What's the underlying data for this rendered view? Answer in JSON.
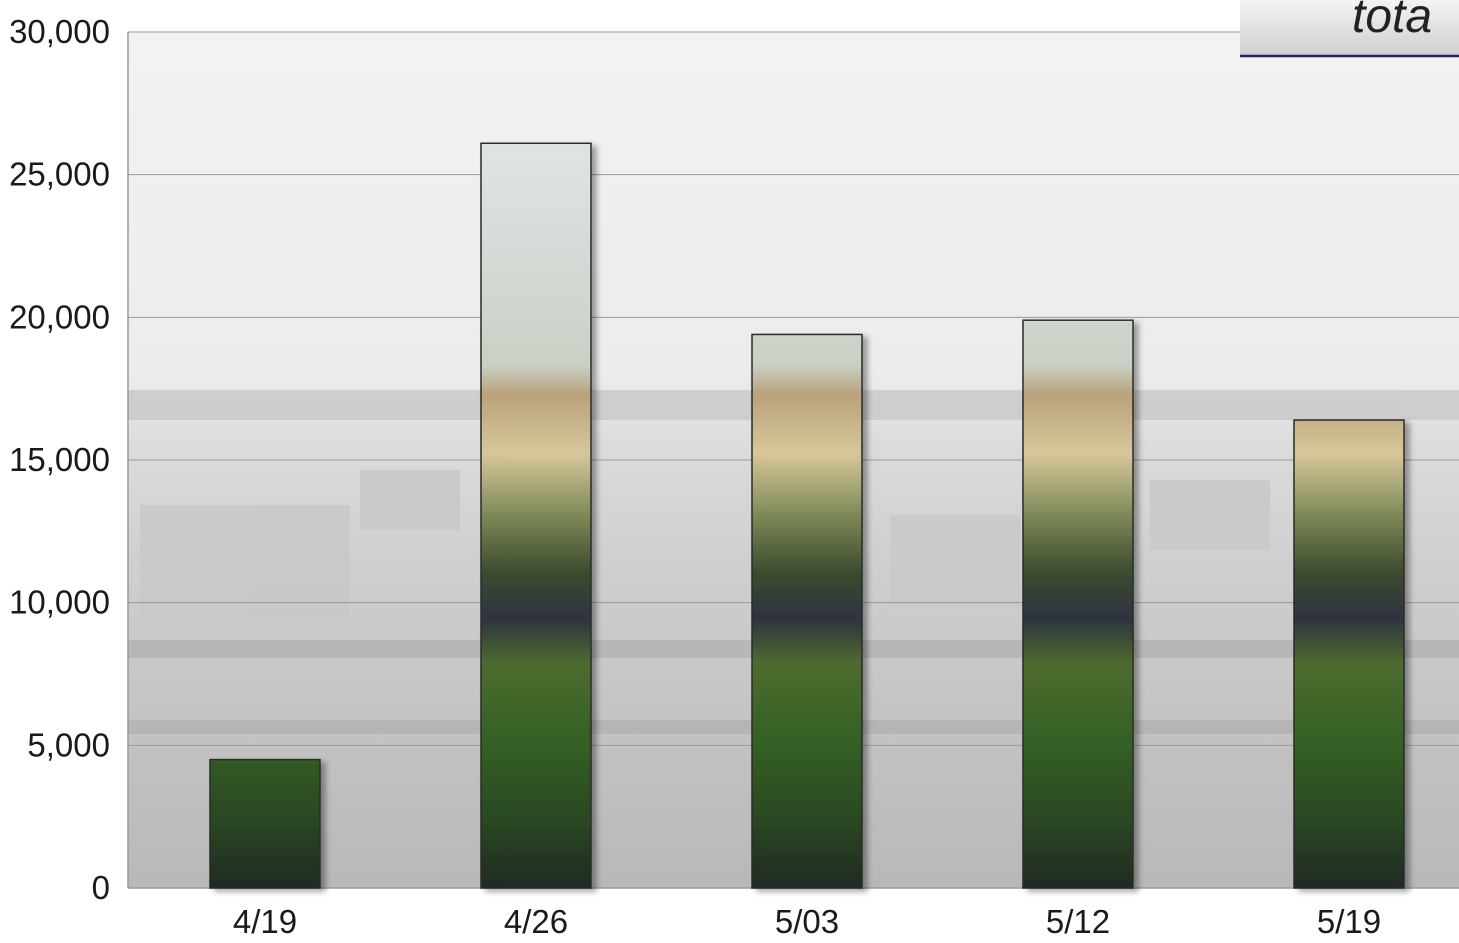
{
  "chart_data": {
    "type": "bar",
    "title": "tota",
    "categories": [
      "4/19",
      "4/26",
      "5/03",
      "5/12",
      "5/19"
    ],
    "values": [
      4500,
      26100,
      19400,
      19900,
      16400
    ],
    "ylim": [
      0,
      30000
    ],
    "yticks": [
      0,
      5000,
      10000,
      15000,
      20000,
      25000,
      30000
    ],
    "ytick_labels": [
      "0",
      "5,000",
      "10,000",
      "15,000",
      "20,000",
      "25,000",
      "30,000"
    ],
    "xlabel": "",
    "ylabel": "",
    "grid": true,
    "background": "faded photo of a city skyline with palm trees",
    "colors": {
      "grid": "#9a9a9a",
      "bar_outline": "#2a2a2a",
      "title_box": "#d9d9d9",
      "title_underline": "#1f2a5a"
    }
  }
}
